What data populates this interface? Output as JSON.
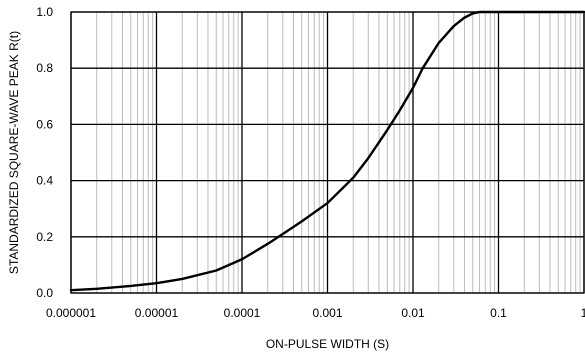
{
  "chart_data": {
    "type": "line",
    "xscale": "log",
    "xlabel": "ON-PULSE WIDTH (S)",
    "ylabel": "STANDARDIZED SQUARE-WAVE PEAK R(t)",
    "xlim": [
      1e-06,
      1
    ],
    "ylim": [
      0,
      1.0
    ],
    "grid": true,
    "x_ticks": [
      "0.000001",
      "0.00001",
      "0.0001",
      "0.001",
      "0.01",
      "0.1",
      "1"
    ],
    "y_ticks": [
      "0.0",
      "0.2",
      "0.4",
      "0.6",
      "0.8",
      "1.0"
    ],
    "series": [
      {
        "x": [
          1e-06,
          2e-06,
          5e-06,
          1e-05,
          2e-05,
          5e-05,
          0.0001,
          0.0002,
          0.0003,
          0.0005,
          0.001,
          0.002,
          0.003,
          0.005,
          0.007,
          0.01,
          0.013,
          0.02,
          0.03,
          0.04,
          0.05,
          0.06,
          0.07,
          0.1,
          0.2,
          0.5,
          1
        ],
        "y": [
          0.01,
          0.015,
          0.025,
          0.035,
          0.05,
          0.08,
          0.12,
          0.175,
          0.21,
          0.255,
          0.32,
          0.41,
          0.48,
          0.58,
          0.65,
          0.73,
          0.8,
          0.89,
          0.95,
          0.98,
          0.995,
          1.0,
          1.0,
          1.0,
          1.0,
          1.0,
          1.0
        ],
        "color": "#000000"
      }
    ]
  }
}
